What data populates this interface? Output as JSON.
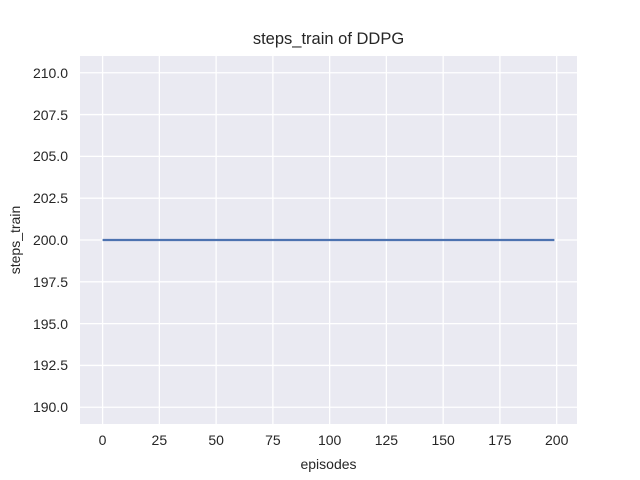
{
  "chart_data": {
    "type": "line",
    "title": "steps_train of DDPG",
    "xlabel": "episodes",
    "ylabel": "steps_train",
    "x_ticks": [
      0,
      25,
      50,
      75,
      100,
      125,
      150,
      175,
      200
    ],
    "x_tick_labels": [
      "0",
      "25",
      "50",
      "75",
      "100",
      "125",
      "150",
      "175",
      "200"
    ],
    "y_ticks": [
      190.0,
      192.5,
      195.0,
      197.5,
      200.0,
      202.5,
      205.0,
      207.5,
      210.0
    ],
    "y_tick_labels": [
      "190.0",
      "192.5",
      "195.0",
      "197.5",
      "200.0",
      "202.5",
      "205.0",
      "207.5",
      "210.0"
    ],
    "xlim": [
      -9.95,
      208.95
    ],
    "ylim": [
      189.0,
      211.0
    ],
    "grid": true,
    "legend_position": "none",
    "series": [
      {
        "name": "steps_train",
        "x": [
          0,
          199
        ],
        "y": [
          200,
          200
        ],
        "color": "#4c72b0",
        "linewidth": 2.2
      }
    ],
    "colors": {
      "figure_background": "#ffffff",
      "axes_background": "#eaeaf2",
      "grid": "#ffffff",
      "text": "#262626"
    }
  }
}
